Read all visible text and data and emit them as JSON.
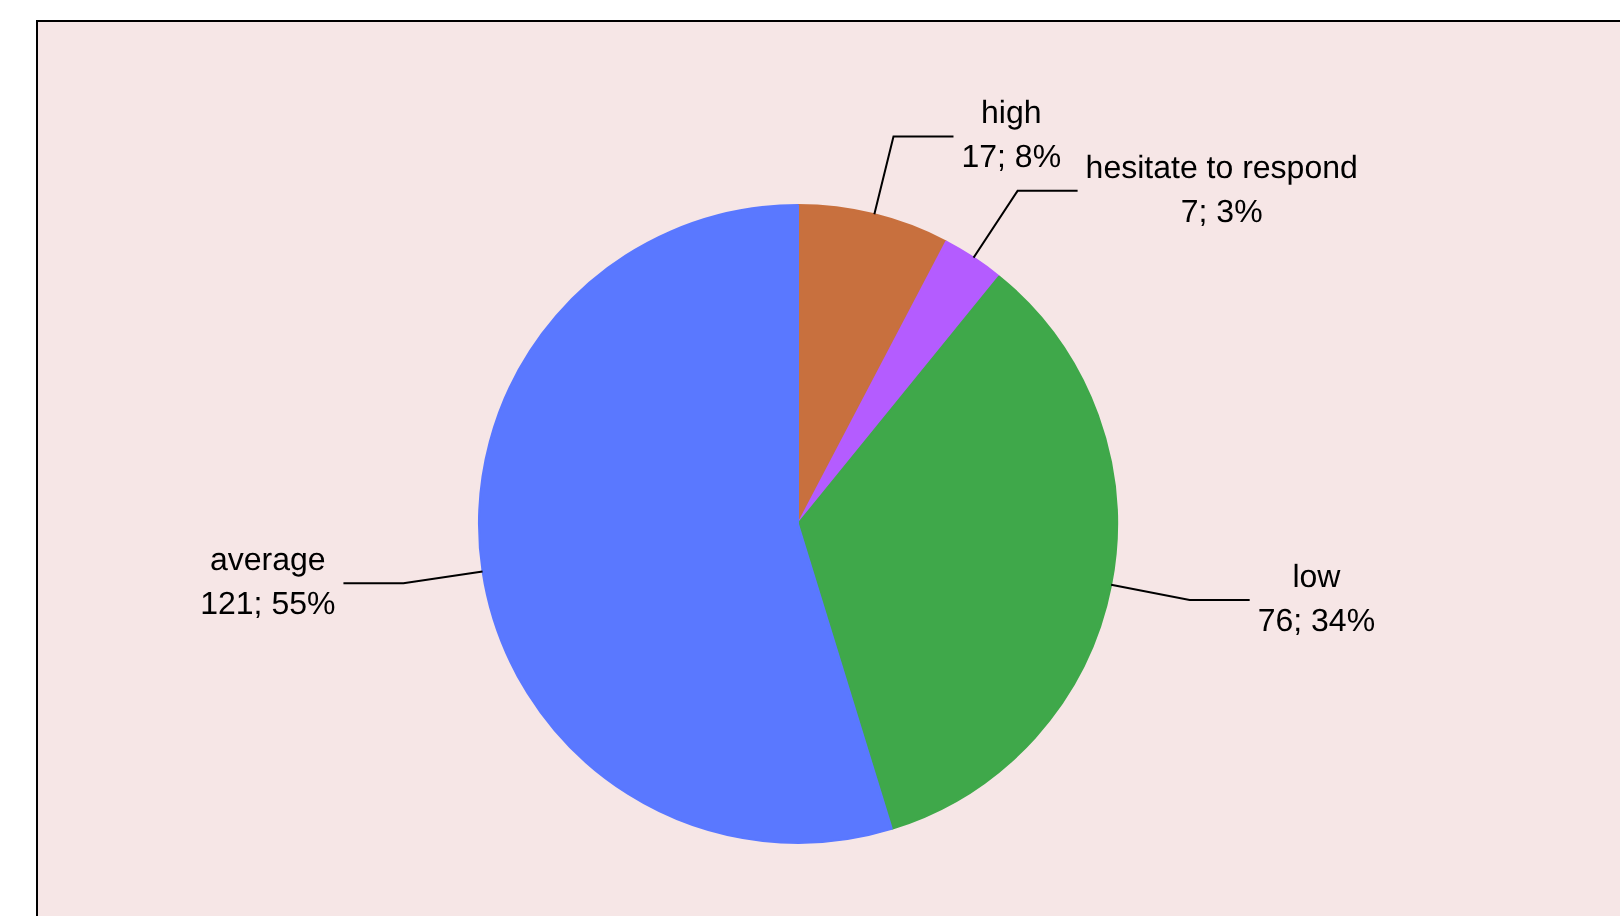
{
  "chart_data": {
    "type": "pie",
    "categories": [
      "high",
      "hesitate to respond",
      "low",
      "average"
    ],
    "values": [
      17,
      7,
      76,
      121
    ],
    "value_labels": [
      "17; 8%",
      "7; 3%",
      "76; 34%",
      "121; 55%"
    ],
    "colors": [
      "#c8703e",
      "#b45cff",
      "#3fa84a",
      "#5a78ff"
    ],
    "legend": false
  }
}
